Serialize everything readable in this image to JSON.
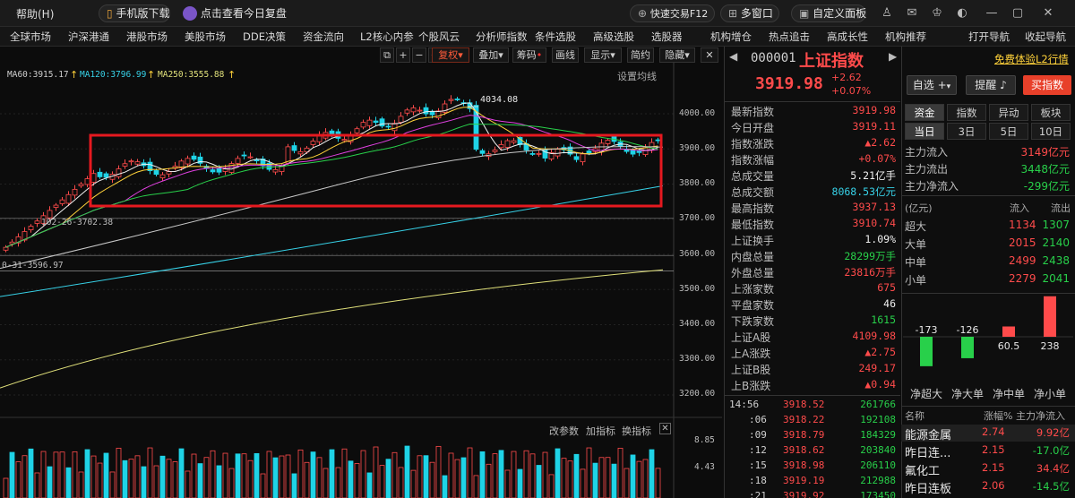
{
  "topbar": {
    "help": "帮助(H)",
    "mobile_download": "手机版下载",
    "review": "点击查看今日复盘",
    "quick_trade": "快速交易F12",
    "multi_window": "多窗口",
    "custom_panel": "自定义面板"
  },
  "menu": [
    "全球市场",
    "沪深港通",
    "港股市场",
    "美股市场",
    "DDE决策",
    "资金流向",
    "L2核心内参",
    "个股风云",
    "分析师指数",
    "条件选股",
    "高级选股",
    "选股器",
    "机构增仓",
    "热点追击",
    "高成长性",
    "机构推荐",
    "打开导航",
    "收起导航"
  ],
  "chart_toolbar": {
    "fuquan": "复权",
    "diejia": "叠加",
    "chouma": "筹码",
    "huaxian": "画线",
    "xianshi": "显示",
    "jianyue": "简约",
    "yincang": "隐藏",
    "settings": "设置均线"
  },
  "ma_labels": [
    {
      "text": "MA60:3915.17",
      "color": "#e8e8e8"
    },
    {
      "text": "MA120:3796.99",
      "color": "#37d2e8"
    },
    {
      "text": "MA250:3555.88",
      "color": "#e0e07a"
    }
  ],
  "chart_annotations": {
    "high_label": "4034.08",
    "low_label": "102-26-3702.38",
    "low2_label": "0-31-3596.97"
  },
  "y_axis_labels": [
    "4000.00",
    "3900.00",
    "3800.00",
    "3700.00",
    "3600.00",
    "3500.00",
    "3400.00",
    "3300.00",
    "3200.00"
  ],
  "sub_chart": {
    "change_param": "改参数",
    "add_indicator": "加指标",
    "swap_indicator": "换指标",
    "y_labels": [
      "8.85",
      "4.43"
    ]
  },
  "quote_header": {
    "code": "000001",
    "name": "上证指数",
    "price": "3919.98",
    "change": "+2.62",
    "change_pct": "+0.07%",
    "free_trial": "免费体验L2行情"
  },
  "quote_buttons": {
    "watchlist": "自选",
    "alert": "提醒",
    "buy_index": "买指数"
  },
  "quote_rows": [
    {
      "label": "最新指数",
      "value": "3919.98",
      "color": "red"
    },
    {
      "label": "今日开盘",
      "value": "3919.11",
      "color": "red"
    },
    {
      "label": "指数涨跌",
      "value": "▲2.62",
      "color": "red"
    },
    {
      "label": "指数涨幅",
      "value": "+0.07%",
      "color": "red"
    },
    {
      "label": "总成交量",
      "value": "5.21亿手",
      "color": "white"
    },
    {
      "label": "总成交额",
      "value": "8068.53亿元",
      "color": "cyan"
    },
    {
      "label": "最高指数",
      "value": "3937.13",
      "color": "red"
    },
    {
      "label": "最低指数",
      "value": "3910.74",
      "color": "red"
    },
    {
      "label": "上证换手",
      "value": "1.09%",
      "color": "white"
    },
    {
      "label": "内盘总量",
      "value": "28299万手",
      "color": "green"
    },
    {
      "label": "外盘总量",
      "value": "23816万手",
      "color": "red"
    },
    {
      "label": "上涨家数",
      "value": "675",
      "color": "red"
    },
    {
      "label": "平盘家数",
      "value": "46",
      "color": "white"
    },
    {
      "label": "下跌家数",
      "value": "1615",
      "color": "green"
    },
    {
      "label": "上证A股",
      "value": "4109.98",
      "color": "red"
    },
    {
      "label": "上A涨跌",
      "value": "▲2.75",
      "color": "red"
    },
    {
      "label": "上证B股",
      "value": "249.17",
      "color": "red"
    },
    {
      "label": "上B涨跌",
      "value": "▲0.94",
      "color": "red"
    }
  ],
  "ticks": [
    {
      "time": "14:56",
      "price": "3918.52",
      "vol": "261766"
    },
    {
      "time": ":06",
      "price": "3918.22",
      "vol": "192108"
    },
    {
      "time": ":09",
      "price": "3918.79",
      "vol": "184329"
    },
    {
      "time": ":12",
      "price": "3918.62",
      "vol": "203840"
    },
    {
      "time": ":15",
      "price": "3918.98",
      "vol": "206110"
    },
    {
      "time": ":18",
      "price": "3919.19",
      "vol": "212988"
    },
    {
      "time": ":21",
      "price": "3919.92",
      "vol": "173450"
    }
  ],
  "flow_tabs": [
    "资金",
    "指数",
    "异动",
    "板块"
  ],
  "flow_day_tabs": [
    "当日",
    "3日",
    "5日",
    "10日"
  ],
  "flow_summary": [
    {
      "label": "主力流入",
      "value": "3149亿元",
      "color": "red"
    },
    {
      "label": "主力流出",
      "value": "3448亿元",
      "color": "green"
    },
    {
      "label": "主力净流入",
      "value": "-299亿元",
      "color": "green"
    }
  ],
  "flow_table": {
    "unit": "(亿元)",
    "in_header": "流入",
    "out_header": "流出",
    "rows": [
      {
        "label": "超大",
        "in": "1134",
        "out": "1307"
      },
      {
        "label": "大单",
        "in": "2015",
        "out": "2140"
      },
      {
        "label": "中单",
        "in": "2499",
        "out": "2438"
      },
      {
        "label": "小单",
        "in": "2279",
        "out": "2041"
      }
    ]
  },
  "net_flow_bars": [
    {
      "label": "净超大",
      "value": -173
    },
    {
      "label": "净大单",
      "value": -126
    },
    {
      "label": "净中单",
      "value": 60.5
    },
    {
      "label": "净小单",
      "value": 238
    }
  ],
  "net_flow_value_labels": [
    "-173",
    "-126",
    "60.5",
    "238"
  ],
  "sector_table": {
    "headers": [
      "名称",
      "涨幅%",
      "主力净流入"
    ],
    "rows": [
      {
        "name": "能源金属",
        "pct": "2.74",
        "flow": "9.92亿",
        "flow_color": "red"
      },
      {
        "name": "昨日连...",
        "pct": "2.15",
        "flow": "-17.0亿",
        "flow_color": "green"
      },
      {
        "name": "氟化工",
        "pct": "2.15",
        "flow": "34.4亿",
        "flow_color": "red"
      },
      {
        "name": "昨日连板",
        "pct": "2.06",
        "flow": "-14.5亿",
        "flow_color": "green"
      }
    ]
  },
  "colors": {
    "up": "#ff4b4b",
    "down": "#1fd3e6",
    "highlight_box": "#e5191f",
    "buy_button": "#e8402a"
  }
}
